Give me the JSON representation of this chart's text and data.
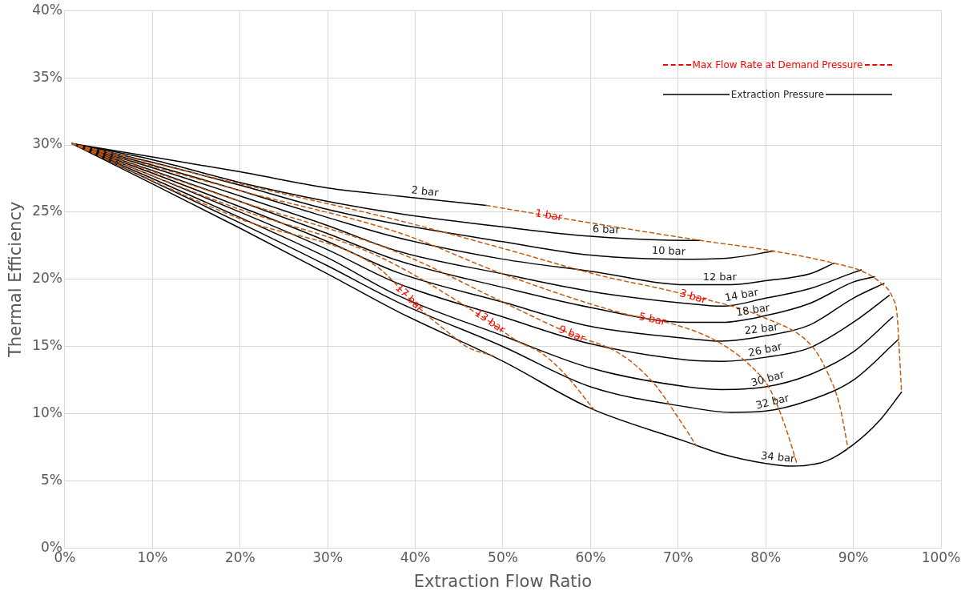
{
  "chart_data": {
    "type": "line",
    "xlabel": "Extraction Flow Ratio",
    "ylabel": "Thermal Efficiency",
    "grid": true,
    "xlim": [
      0,
      100
    ],
    "ylim": [
      0,
      40
    ],
    "xticks": [
      {
        "value": 0,
        "label": "0%"
      },
      {
        "value": 10,
        "label": "10%"
      },
      {
        "value": 20,
        "label": "20%"
      },
      {
        "value": 30,
        "label": "30%"
      },
      {
        "value": 40,
        "label": "40%"
      },
      {
        "value": 50,
        "label": "50%"
      },
      {
        "value": 60,
        "label": "60%"
      },
      {
        "value": 70,
        "label": "70%"
      },
      {
        "value": 80,
        "label": "80%"
      },
      {
        "value": 90,
        "label": "90%"
      },
      {
        "value": 100,
        "label": "100%"
      }
    ],
    "yticks": [
      {
        "value": 0,
        "label": "0%"
      },
      {
        "value": 5,
        "label": "5%"
      },
      {
        "value": 10,
        "label": "10%"
      },
      {
        "value": 15,
        "label": "15%"
      },
      {
        "value": 20,
        "label": "20%"
      },
      {
        "value": 25,
        "label": "25%"
      },
      {
        "value": 30,
        "label": "30%"
      },
      {
        "value": 35,
        "label": "35%"
      },
      {
        "value": 40,
        "label": "40%"
      }
    ],
    "annotations": [
      "Max Flow Rate at Demand Pressure",
      "Extraction Pressure"
    ],
    "series": [
      {
        "name": "1 bar",
        "color": "#c55a11",
        "line_style": "dashed",
        "x": [
          48.1,
          60,
          72.5,
          80.9,
          87.8,
          91,
          93,
          94.5,
          95,
          95.2,
          95.5
        ],
        "values": [
          25.5,
          24.2,
          22.9,
          22.1,
          21.2,
          20.6,
          19.8,
          18.6,
          17.3,
          15.2,
          11.6
        ]
      },
      {
        "name": "3 bar",
        "color": "#c55a11",
        "line_style": "dashed",
        "x": [
          0.8,
          20,
          38,
          50,
          61,
          70,
          80,
          85.3,
          87.1,
          88.4,
          89.4
        ],
        "values": [
          30.1,
          27.1,
          24.4,
          22.3,
          20.3,
          19.0,
          17.1,
          15.0,
          13.0,
          10.7,
          7.4
        ]
      },
      {
        "name": "5 bar",
        "color": "#c55a11",
        "line_style": "dashed",
        "x": [
          0.8,
          20,
          38,
          50,
          63.5,
          69.8,
          74.4,
          78.2,
          80.5,
          82.2,
          83.6
        ],
        "values": [
          30.1,
          26.6,
          23.5,
          20.4,
          17.5,
          16.6,
          15.4,
          13.6,
          11.8,
          9.1,
          6.2
        ]
      },
      {
        "name": "9 bar",
        "color": "#c55a11",
        "line_style": "dashed",
        "x": [
          0.8,
          20,
          38,
          50,
          57.5,
          63.5,
          67.3,
          69.8,
          72.1
        ],
        "values": [
          30.1,
          25.8,
          22.0,
          18.3,
          16.0,
          14.4,
          12.2,
          9.9,
          7.6
        ]
      },
      {
        "name": "13 bar",
        "color": "#c55a11",
        "line_style": "dashed",
        "x": [
          0.8,
          20,
          35.5,
          47.9,
          51.9,
          54.2,
          57,
          60.4
        ],
        "values": [
          30.1,
          25.2,
          21.8,
          17.1,
          15.3,
          14.6,
          13.0,
          10.3
        ]
      },
      {
        "name": "17 bar",
        "color": "#c55a11",
        "line_style": "dashed",
        "x": [
          0.8,
          20,
          35.5,
          40.2,
          44.6,
          45.8,
          48.9
        ],
        "values": [
          30.1,
          24.5,
          21.0,
          18.0,
          15.6,
          15.0,
          14.3
        ]
      },
      {
        "name": "2 bar",
        "color": "#000000",
        "line_style": "solid",
        "x": [
          0.8,
          10,
          20,
          30,
          38,
          48.1
        ],
        "values": [
          30.1,
          29.1,
          28.0,
          26.8,
          26.2,
          25.5
        ]
      },
      {
        "name": "6 bar",
        "color": "#000000",
        "line_style": "solid",
        "x": [
          0.8,
          10,
          20,
          30,
          38,
          50,
          60,
          71,
          72.5
        ],
        "values": [
          30.1,
          28.9,
          27.2,
          25.8,
          24.9,
          23.9,
          23.2,
          22.9,
          22.9
        ]
      },
      {
        "name": "10 bar",
        "color": "#000000",
        "line_style": "solid",
        "x": [
          0.8,
          10,
          20,
          30,
          38,
          50,
          60,
          71,
          76,
          80.9
        ],
        "values": [
          30.1,
          28.7,
          27.0,
          25.2,
          24.1,
          22.8,
          21.8,
          21.5,
          21.6,
          22.1
        ]
      },
      {
        "name": "12 bar",
        "color": "#000000",
        "line_style": "solid",
        "x": [
          0.8,
          10,
          20,
          30,
          38,
          50,
          60,
          71,
          76,
          80,
          85,
          87.8
        ],
        "values": [
          30.1,
          28.5,
          26.6,
          24.6,
          23.1,
          21.5,
          20.6,
          19.6,
          19.6,
          19.9,
          20.4,
          21.2
        ]
      },
      {
        "name": "14 bar",
        "color": "#000000",
        "line_style": "solid",
        "x": [
          0.8,
          10,
          20,
          30,
          38,
          50,
          60,
          71,
          75,
          80,
          85,
          90,
          90.9
        ],
        "values": [
          30.1,
          28.3,
          26.2,
          24.0,
          22.1,
          20.4,
          19.1,
          18.2,
          18.0,
          18.6,
          19.3,
          20.5,
          20.7
        ]
      },
      {
        "name": "18 bar",
        "color": "#000000",
        "line_style": "solid",
        "x": [
          0.8,
          10,
          20,
          30,
          38,
          50,
          60,
          71,
          75,
          80,
          85,
          90,
          92.4
        ],
        "values": [
          30.1,
          28.1,
          25.8,
          23.4,
          21.4,
          19.4,
          17.9,
          16.8,
          16.8,
          17.3,
          18.2,
          19.8,
          20.2
        ]
      },
      {
        "name": "22 bar",
        "color": "#000000",
        "line_style": "solid",
        "x": [
          0.8,
          10,
          20,
          30,
          38,
          50,
          60,
          71,
          75,
          80,
          85,
          90,
          93.5
        ],
        "values": [
          30.1,
          27.9,
          25.4,
          22.8,
          20.5,
          18.3,
          16.5,
          15.6,
          15.4,
          15.8,
          16.6,
          18.6,
          19.7
        ]
      },
      {
        "name": "26 bar",
        "color": "#000000",
        "line_style": "solid",
        "x": [
          0.8,
          10,
          20,
          30,
          38,
          50,
          60,
          71,
          75,
          80,
          85,
          90,
          94.1
        ],
        "values": [
          30.1,
          27.7,
          25.0,
          22.2,
          19.7,
          17.2,
          15.2,
          14.0,
          13.9,
          14.2,
          14.9,
          16.8,
          18.8
        ]
      },
      {
        "name": "30 bar",
        "color": "#000000",
        "line_style": "solid",
        "x": [
          0.8,
          10,
          20,
          30,
          38,
          50,
          60,
          71,
          75,
          80,
          85,
          90,
          94.5
        ],
        "values": [
          30.1,
          27.5,
          24.6,
          21.6,
          18.8,
          15.8,
          13.4,
          12.0,
          11.8,
          12.0,
          12.9,
          14.6,
          17.2
        ]
      },
      {
        "name": "32 bar",
        "color": "#000000",
        "line_style": "solid",
        "x": [
          0.8,
          10,
          20,
          30,
          38,
          50,
          60,
          71,
          76,
          80,
          85,
          90,
          95.1
        ],
        "values": [
          30.1,
          27.3,
          24.2,
          21.0,
          18.3,
          15.0,
          12.0,
          10.5,
          10.1,
          10.2,
          11.0,
          12.5,
          15.5
        ]
      },
      {
        "name": "34 bar",
        "color": "#000000",
        "line_style": "solid",
        "x": [
          0.8,
          10,
          20,
          30,
          38,
          50,
          60,
          71,
          75,
          80,
          83,
          87,
          90,
          93,
          95.5
        ],
        "values": [
          30.1,
          27.1,
          23.8,
          20.4,
          17.6,
          13.9,
          10.4,
          7.9,
          7.0,
          6.3,
          6.1,
          6.5,
          7.7,
          9.5,
          11.6
        ]
      }
    ]
  }
}
